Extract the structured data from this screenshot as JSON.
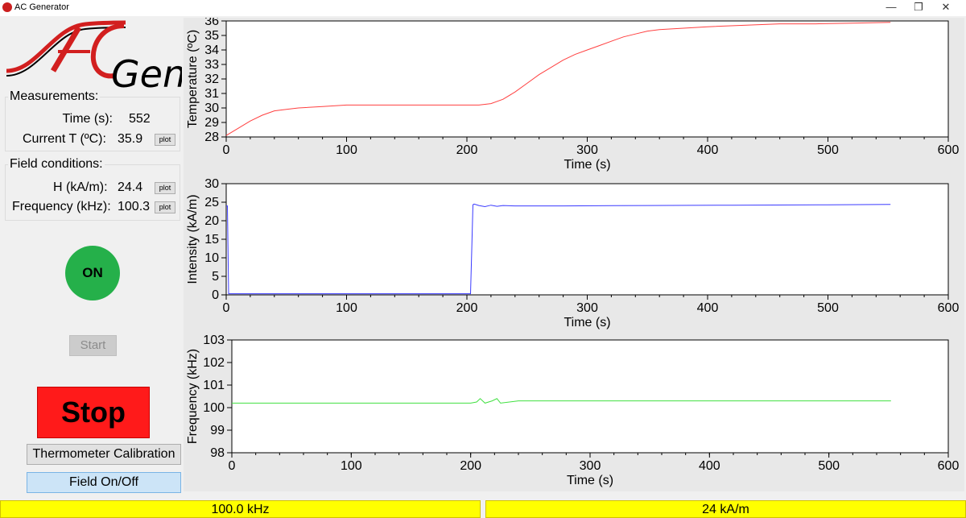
{
  "window": {
    "title": "AC Generator",
    "controls": [
      "—",
      "❐",
      "✕"
    ]
  },
  "logo": {
    "text_ac": "AC",
    "text_gen": "Gen",
    "colors": {
      "red": "#d21f1f",
      "black": "#000000"
    }
  },
  "measurements": {
    "title": "Measurements:",
    "time_label": "Time (s):",
    "time_value": "552",
    "temp_label": "Current T (ºC):",
    "temp_value": "35.9",
    "plot_label": "plot"
  },
  "field_conditions": {
    "title": "Field conditions:",
    "h_label": "H (kA/m):",
    "h_value": "24.4",
    "freq_label": "Frequency (kHz):",
    "freq_value": "100.3",
    "plot_label": "plot"
  },
  "controls": {
    "on_label": "ON",
    "start_label": "Start",
    "stop_label": "Stop",
    "calib_label": "Thermometer Calibration",
    "field_label": "Field On/Off"
  },
  "status": {
    "frequency": "100.0 kHz",
    "field": "24 kA/m"
  },
  "chart_data": [
    {
      "type": "line",
      "xlabel": "Time (s)",
      "ylabel": "Temperature (ºC)",
      "xlim": [
        0,
        600
      ],
      "ylim": [
        28,
        36
      ],
      "xticks": [
        0,
        100,
        200,
        300,
        400,
        500,
        600
      ],
      "yticks": [
        28,
        29,
        30,
        31,
        32,
        33,
        34,
        35,
        36
      ],
      "color": "#ff4040",
      "series": [
        {
          "x": [
            0,
            10,
            20,
            30,
            40,
            50,
            60,
            80,
            100,
            130,
            160,
            190,
            210,
            220,
            230,
            240,
            250,
            260,
            270,
            280,
            290,
            300,
            310,
            320,
            330,
            340,
            350,
            360,
            380,
            400,
            430,
            460,
            490,
            520,
            552
          ],
          "y": [
            28.1,
            28.6,
            29.1,
            29.5,
            29.8,
            29.9,
            30.0,
            30.1,
            30.2,
            30.2,
            30.2,
            30.2,
            30.2,
            30.3,
            30.6,
            31.1,
            31.7,
            32.3,
            32.8,
            33.3,
            33.7,
            34.0,
            34.3,
            34.6,
            34.9,
            35.1,
            35.3,
            35.4,
            35.5,
            35.6,
            35.7,
            35.8,
            35.8,
            35.85,
            35.9
          ]
        }
      ]
    },
    {
      "type": "line",
      "xlabel": "Time (s)",
      "ylabel": "Intensity (kA/m)",
      "xlim": [
        0,
        600
      ],
      "ylim": [
        0,
        30
      ],
      "xticks": [
        0,
        100,
        200,
        300,
        400,
        500,
        600
      ],
      "yticks": [
        0,
        5,
        10,
        15,
        20,
        25,
        30
      ],
      "color": "#3a3aff",
      "series": [
        {
          "x": [
            0,
            1,
            2,
            3,
            100,
            203,
            204,
            205,
            206,
            210,
            215,
            220,
            225,
            230,
            240,
            280,
            350,
            420,
            500,
            552
          ],
          "y": [
            24,
            24,
            0.3,
            0.3,
            0.3,
            0.3,
            12,
            24.3,
            24.5,
            24.1,
            23.8,
            24.2,
            23.9,
            24.1,
            24.0,
            24.0,
            24.1,
            24.2,
            24.3,
            24.4
          ]
        }
      ]
    },
    {
      "type": "line",
      "xlabel": "Time (s)",
      "ylabel": "Frequency (kHz)",
      "xlim": [
        0,
        600
      ],
      "ylim": [
        98,
        103
      ],
      "xticks": [
        0,
        100,
        200,
        300,
        400,
        500,
        600
      ],
      "yticks": [
        98,
        99,
        100,
        101,
        102,
        103
      ],
      "color": "#40e040",
      "series": [
        {
          "x": [
            0,
            100,
            200,
            205,
            208,
            212,
            218,
            222,
            225,
            240,
            300,
            400,
            500,
            552
          ],
          "y": [
            100.2,
            100.2,
            100.2,
            100.25,
            100.4,
            100.2,
            100.3,
            100.4,
            100.2,
            100.3,
            100.3,
            100.3,
            100.3,
            100.3
          ]
        }
      ]
    }
  ]
}
